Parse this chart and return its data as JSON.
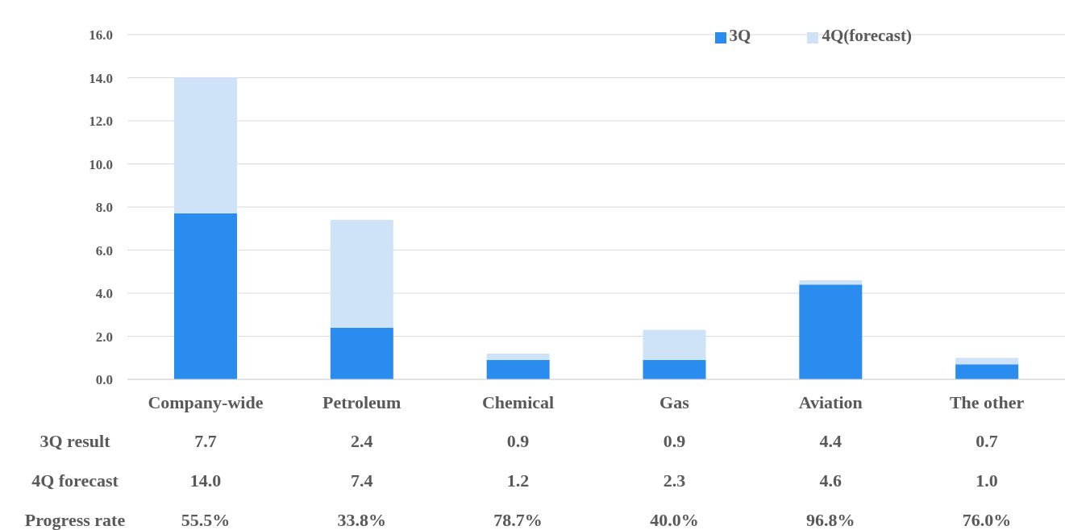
{
  "chart_data": {
    "type": "bar",
    "stacked": true,
    "categories": [
      "Company-wide",
      "Petroleum",
      "Chemical",
      "Gas",
      "Aviation",
      "The other"
    ],
    "series": [
      {
        "name": "3Q",
        "color": "#2b8cf0",
        "values": [
          7.7,
          2.4,
          0.9,
          0.9,
          4.4,
          0.7
        ]
      },
      {
        "name": "4Q(forecast)",
        "color": "#cfe3f8",
        "values": [
          6.3,
          5.0,
          0.3,
          1.4,
          0.2,
          0.3
        ]
      }
    ],
    "ylim": [
      0,
      16
    ],
    "yticks": [
      {
        "value": 0,
        "label": "0.0"
      },
      {
        "value": 2,
        "label": "2.0"
      },
      {
        "value": 4,
        "label": "4.0"
      },
      {
        "value": 6,
        "label": "6.0"
      },
      {
        "value": 8,
        "label": "8.0"
      },
      {
        "value": 10,
        "label": "10.0"
      },
      {
        "value": 12,
        "label": "12.0"
      },
      {
        "value": 14,
        "label": "14.0"
      },
      {
        "value": 16,
        "label": "16.0"
      }
    ],
    "grid": "y",
    "legend": "top right",
    "annotations": [
      "3Q result",
      "7.7",
      "2.4",
      "0.9",
      "0.9",
      "4.4",
      "0.7",
      "4Q forecast",
      "14.0",
      "7.4",
      "1.2",
      "2.3",
      "4.6",
      "1.0",
      "Progress rate",
      "55.5%",
      "33.8%",
      "78.7%",
      "40.0%",
      "96.8%",
      "76.0%"
    ]
  }
}
